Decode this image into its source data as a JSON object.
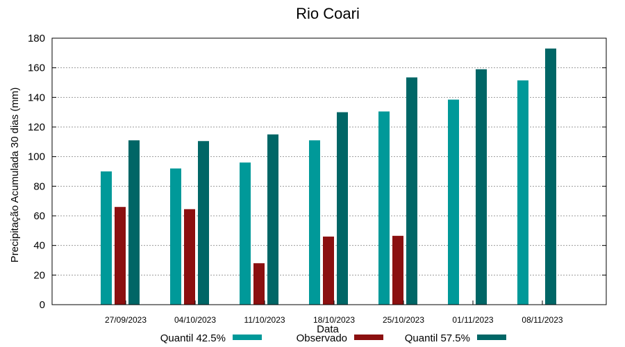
{
  "chart_data": {
    "type": "bar",
    "title": "Rio Coari",
    "xlabel": "Data",
    "ylabel": "Precipitação Acumulada 30 dias (mm)",
    "ylim": [
      0,
      180
    ],
    "yticks": [
      0,
      20,
      40,
      60,
      80,
      100,
      120,
      140,
      160,
      180
    ],
    "grid": true,
    "legend_position": "bottom",
    "categories": [
      "27/09/2023",
      "04/10/2023",
      "11/10/2023",
      "18/10/2023",
      "25/10/2023",
      "01/11/2023",
      "08/11/2023"
    ],
    "series": [
      {
        "name": "Quantil 42.5%",
        "color": "#009999",
        "values": [
          90,
          92,
          96,
          111,
          130.5,
          138.5,
          151.5
        ]
      },
      {
        "name": "Observado",
        "color": "#8b1010",
        "values": [
          66,
          64.5,
          28,
          46,
          46.5,
          null,
          null
        ]
      },
      {
        "name": "Quantil 57.5%",
        "color": "#006666",
        "values": [
          111,
          110.5,
          115,
          130,
          153.5,
          159,
          173
        ]
      }
    ]
  }
}
